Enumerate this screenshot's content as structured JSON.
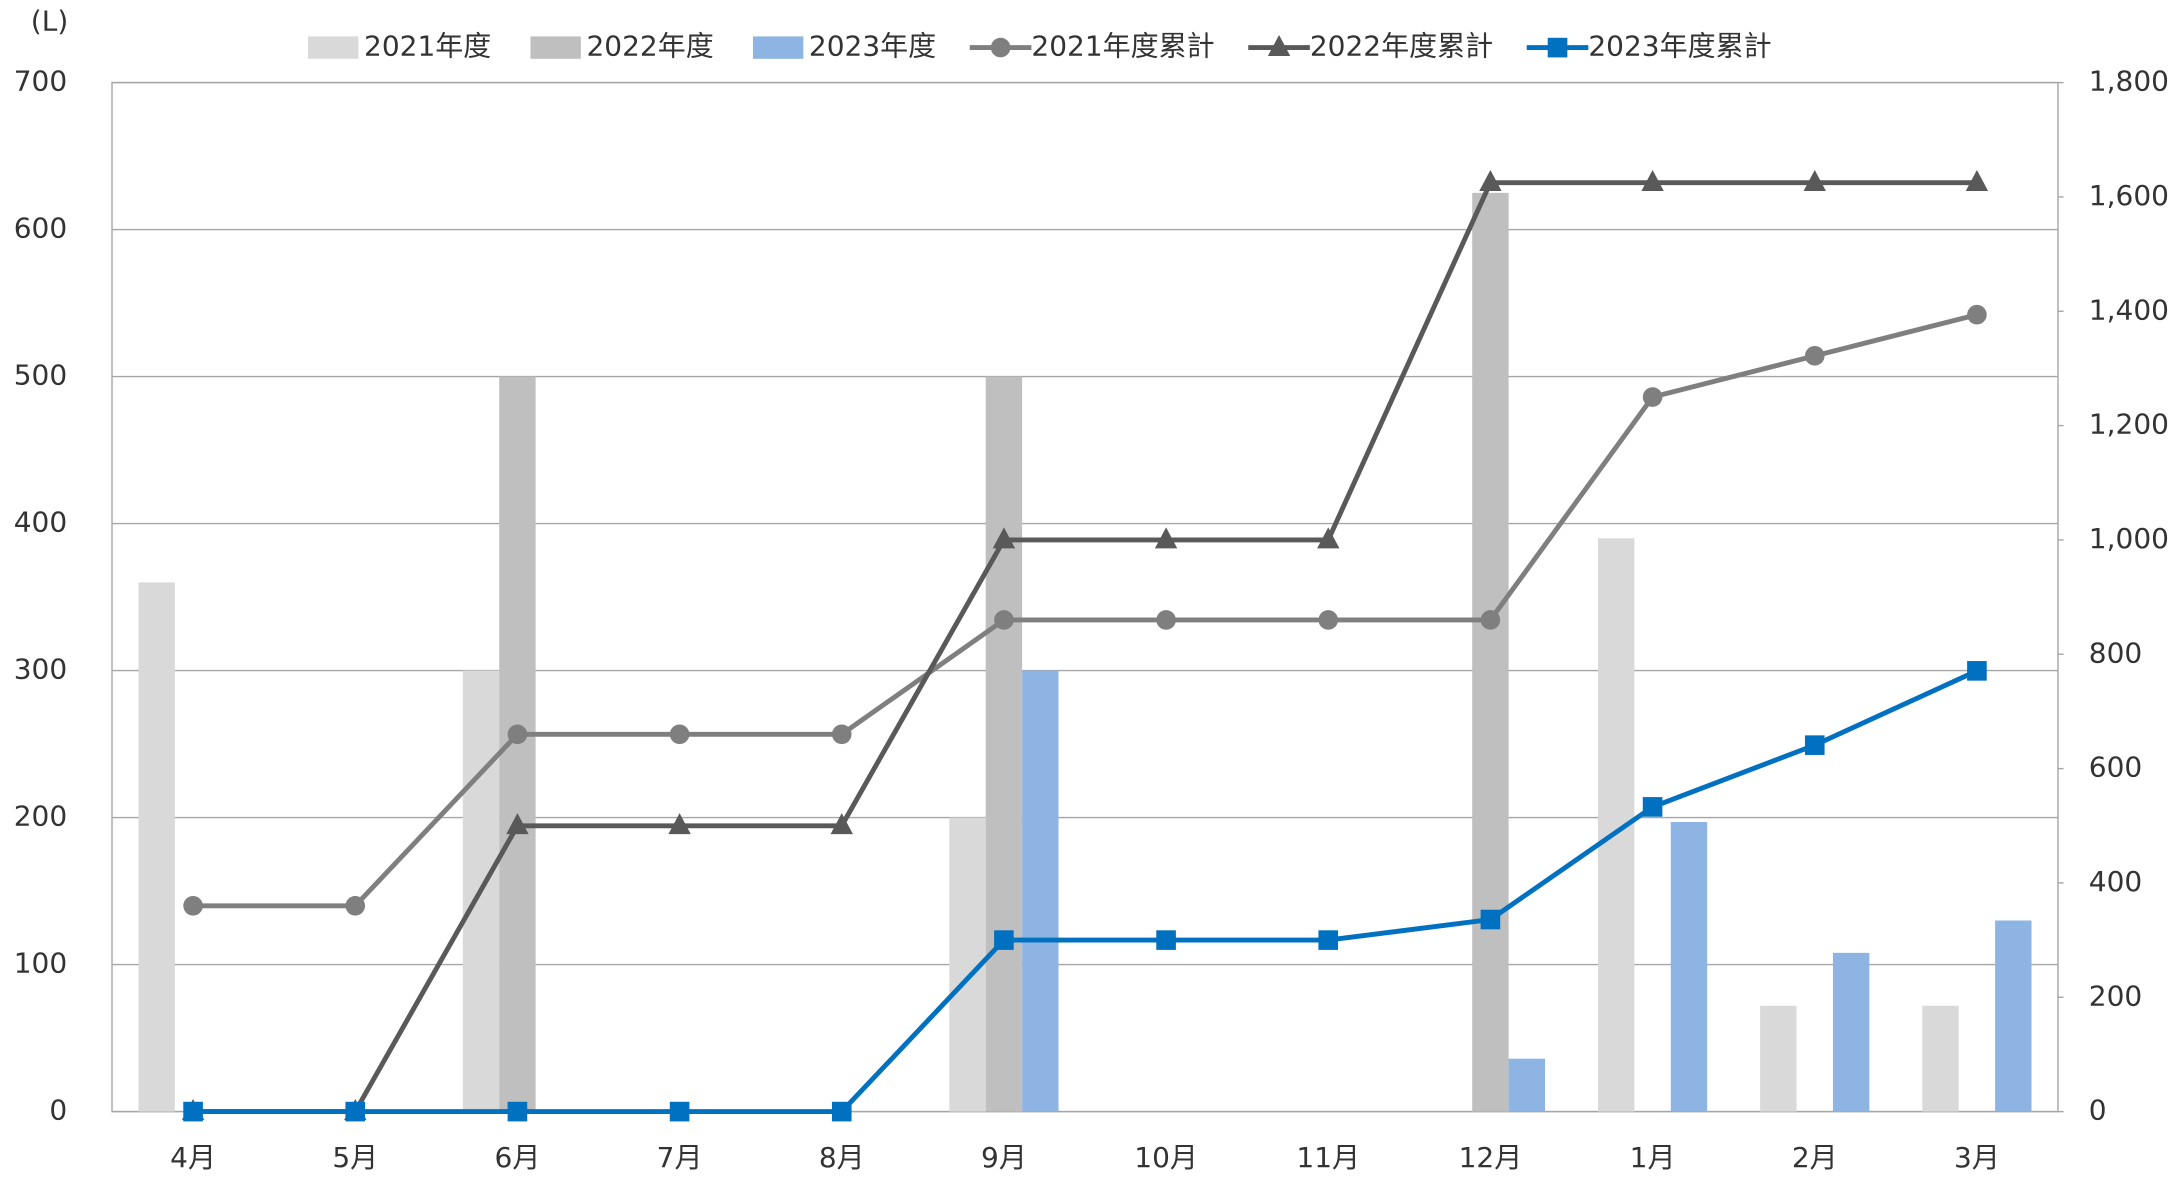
{
  "chart_data": {
    "type": "bar_line",
    "y_label": "(L)",
    "categories": [
      "4月",
      "5月",
      "6月",
      "7月",
      "8月",
      "9月",
      "10月",
      "11月",
      "12月",
      "1月",
      "2月",
      "3月"
    ],
    "series": [
      {
        "name": "2021年度",
        "type": "bar",
        "color": "#d9d9d9",
        "values": [
          360,
          0,
          300,
          0,
          0,
          200,
          0,
          0,
          0,
          390,
          72,
          72
        ]
      },
      {
        "name": "2022年度",
        "type": "bar",
        "color": "#bfbfbf",
        "values": [
          0,
          0,
          500,
          0,
          0,
          500,
          0,
          0,
          625,
          0,
          0,
          0
        ]
      },
      {
        "name": "2023年度",
        "type": "bar",
        "color": "#8eb4e3",
        "values": [
          0,
          0,
          0,
          0,
          0,
          300,
          0,
          0,
          36,
          197,
          108,
          130
        ]
      },
      {
        "name": "2021年度累計",
        "type": "line",
        "marker": "circle",
        "axis": "y2",
        "color": "#7f7f7f",
        "values": [
          360,
          360,
          660,
          660,
          660,
          860,
          860,
          860,
          860,
          1250,
          1322,
          1394
        ]
      },
      {
        "name": "2022年度累計",
        "type": "line",
        "marker": "triangle",
        "axis": "y2",
        "color": "#595959",
        "values": [
          0,
          0,
          500,
          500,
          500,
          1000,
          1000,
          1000,
          1625,
          1625,
          1625,
          1625
        ]
      },
      {
        "name": "2023年度累計",
        "type": "line",
        "marker": "square",
        "axis": "y2",
        "color": "#0070c0",
        "values": [
          0,
          0,
          0,
          0,
          0,
          300,
          300,
          300,
          336,
          533,
          641,
          771
        ]
      }
    ],
    "ylim": [
      0,
      700
    ],
    "yticks": [
      0,
      100,
      200,
      300,
      400,
      500,
      600,
      700
    ],
    "y2lim": [
      0,
      1800
    ],
    "y2ticks": [
      0,
      200,
      400,
      600,
      800,
      {
        "value": 1000,
        "label": "1,000"
      },
      {
        "value": 1200,
        "label": "1,200"
      },
      {
        "value": 1400,
        "label": "1,400"
      },
      {
        "value": 1600,
        "label": "1,600"
      },
      {
        "value": 1800,
        "label": "1,800"
      }
    ],
    "grid": true,
    "legend": "top"
  }
}
